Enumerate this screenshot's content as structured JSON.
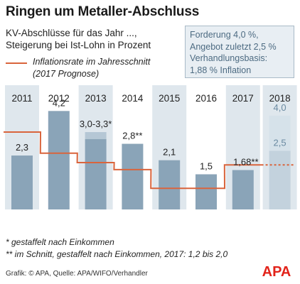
{
  "title": "Ringen um Metaller-Abschluss",
  "subtitle": [
    "KV-Abschlüsse für das Jahr ...,",
    "Steigerung bei Ist-Lohn in Prozent"
  ],
  "infobox": [
    "Forderung 4,0 %,",
    "Angebot zuletzt 2,5 %",
    "Verhandlungsbasis:",
    "1,88 % Inflation"
  ],
  "legend": [
    "Inflationsrate im Jahresschnitt",
    "(2017 Prognose)"
  ],
  "footnotes": [
    "* gestaffelt nach Einkommen",
    "** im Schnitt, gestaffelt nach Einkommen, 2017: 1,2 bis 2,0"
  ],
  "credit": "Grafik: © APA, Quelle: APA/WIFO/Verhandler",
  "logo_text": "APA",
  "colors": {
    "bar": "#8aa4b8",
    "bar_light": "#b5c7d5",
    "bar_forecast": "#d6e2ea",
    "bar_forecast_inner": "#c3d2dd",
    "column_bg": "#dfe7ed",
    "inflation_line": "#d9643c",
    "logo": "#e2231a"
  },
  "chart_data": {
    "type": "bar",
    "categories": [
      "2011",
      "2012",
      "2013",
      "2014",
      "2015",
      "2016",
      "2017",
      "2018"
    ],
    "series": [
      {
        "values": [
          2.3,
          4.2,
          3.3,
          2.8,
          2.1,
          1.5,
          1.68,
          4.0
        ]
      },
      {
        "values": [
          null,
          null,
          3.0,
          null,
          null,
          null,
          null,
          2.5
        ]
      },
      {
        "name": "Inflationsrate im Jahresschnitt",
        "type": "line",
        "values": [
          3.3,
          2.4,
          2.0,
          1.7,
          0.9,
          0.9,
          1.9,
          null
        ]
      }
    ],
    "data_labels": [
      "2,3",
      "4,2",
      "3,0-3,3*",
      "2,8**",
      "2,1",
      "1,5",
      "1,68**",
      "4,0",
      "2,5"
    ],
    "ylim": [
      0,
      5.3
    ],
    "shaded_columns": [
      "2011",
      "2013",
      "2015",
      "2017",
      "2018"
    ],
    "forecast_category": "2018"
  }
}
